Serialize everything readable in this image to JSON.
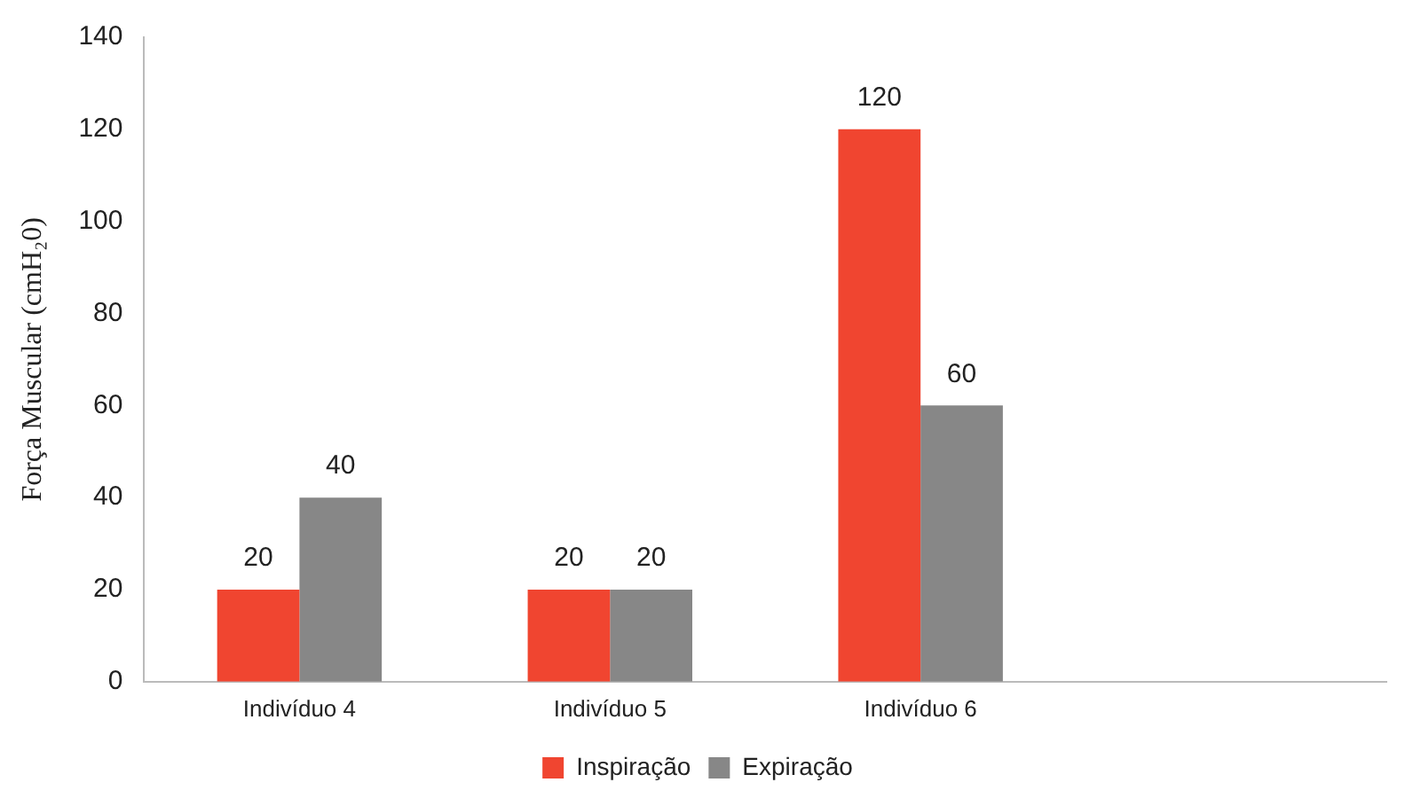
{
  "chart_data": {
    "type": "bar",
    "ylabel": "Força Muscular (cmH₂0)",
    "categories": [
      "Indivíduo 4",
      "Indivíduo 5",
      "Indivíduo 6",
      null
    ],
    "series": [
      {
        "name": "Inspiração",
        "color": "#f04530",
        "values": [
          20,
          20,
          120,
          null
        ]
      },
      {
        "name": "Expiração",
        "color": "#878787",
        "values": [
          40,
          20,
          60,
          null
        ]
      }
    ],
    "ylim": [
      0,
      140
    ],
    "yticks": [
      0,
      20,
      40,
      60,
      80,
      100,
      120,
      140
    ],
    "grid": false,
    "legend": "bottom",
    "data_labels": true
  }
}
